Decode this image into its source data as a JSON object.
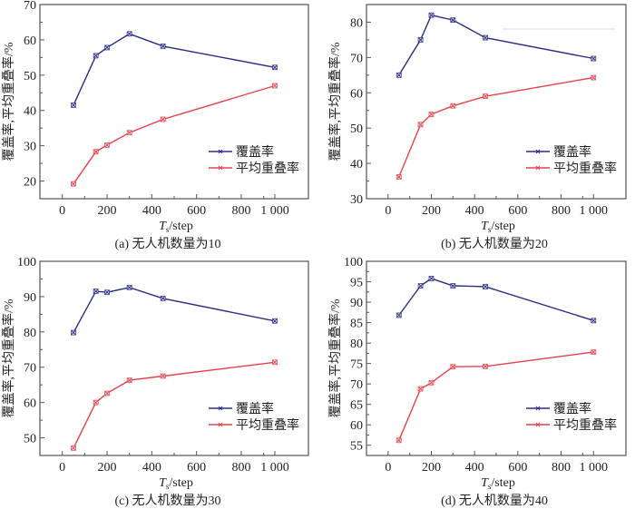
{
  "figure": {
    "legend_labels": [
      "覆盖率",
      "平均重叠率"
    ],
    "series_colors": [
      "#2b2b86",
      "#e8414a"
    ]
  },
  "chart_data": [
    {
      "type": "line",
      "caption": "(a) 无人机数量为10",
      "xlabel_main": "T",
      "xlabel_sub": "s",
      "xlabel_unit": "/step",
      "ylabel": "覆盖率,平均重叠率/%",
      "x": [
        50,
        150,
        200,
        300,
        450,
        1000
      ],
      "x_tick_labels": [
        "0",
        "200",
        "400",
        "600",
        "800",
        "1 000"
      ],
      "x_tick_values": [
        0,
        200,
        400,
        600,
        800,
        1000
      ],
      "x_axis_note": "axis is broken: 1 000 is drawn just after 900",
      "xlim": [
        -100,
        1100
      ],
      "ylim": [
        15,
        70
      ],
      "y_ticks": [
        20,
        30,
        40,
        50,
        60,
        70
      ],
      "series": [
        {
          "name": "覆盖率",
          "values": [
            41.5,
            55.5,
            57.8,
            61.7,
            58.2,
            52.2
          ]
        },
        {
          "name": "平均重叠率",
          "values": [
            19.2,
            28.3,
            30.2,
            33.7,
            37.5,
            47.0
          ]
        }
      ],
      "legend": "bottom-right",
      "grid": false
    },
    {
      "type": "line",
      "caption": "(b) 无人机数量为20",
      "xlabel_main": "T",
      "xlabel_sub": "s",
      "xlabel_unit": "/step",
      "ylabel": "覆盖率,平均重叠率/%",
      "x": [
        50,
        150,
        200,
        300,
        450,
        1000
      ],
      "x_tick_labels": [
        "0",
        "200",
        "400",
        "600",
        "800",
        "1 000"
      ],
      "x_tick_values": [
        0,
        200,
        400,
        600,
        800,
        1000
      ],
      "xlim": [
        -100,
        1100
      ],
      "ylim": [
        30,
        85
      ],
      "y_ticks": [
        30,
        40,
        50,
        60,
        70,
        80
      ],
      "series": [
        {
          "name": "覆盖率",
          "values": [
            65.0,
            75.0,
            82.0,
            80.6,
            75.6,
            69.7
          ]
        },
        {
          "name": "平均重叠率",
          "values": [
            36.2,
            51.0,
            53.9,
            56.3,
            59.0,
            64.3
          ]
        }
      ],
      "legend": "bottom-right",
      "grid": false
    },
    {
      "type": "line",
      "caption": "(c) 无人机数量为30",
      "xlabel_main": "T",
      "xlabel_sub": "s",
      "xlabel_unit": "/step",
      "ylabel": "覆盖率,平均重叠率/%",
      "x": [
        50,
        150,
        200,
        300,
        450,
        1000
      ],
      "x_tick_labels": [
        "0",
        "200",
        "400",
        "600",
        "800",
        "1 000"
      ],
      "x_tick_values": [
        0,
        200,
        400,
        600,
        800,
        1000
      ],
      "xlim": [
        -100,
        1100
      ],
      "ylim": [
        45,
        100
      ],
      "y_ticks": [
        50,
        60,
        70,
        80,
        90,
        100
      ],
      "series": [
        {
          "name": "覆盖率",
          "values": [
            79.8,
            91.5,
            91.2,
            92.6,
            89.5,
            83.1
          ]
        },
        {
          "name": "平均重叠率",
          "values": [
            47.1,
            60.0,
            62.6,
            66.3,
            67.5,
            71.4
          ]
        }
      ],
      "legend": "bottom-right",
      "grid": false
    },
    {
      "type": "line",
      "caption": "(d) 无人机数量为40",
      "xlabel_main": "T",
      "xlabel_sub": "s",
      "xlabel_unit": "/step",
      "ylabel": "覆盖率,平均重叠率/%",
      "x": [
        50,
        150,
        200,
        300,
        450,
        1000
      ],
      "x_tick_labels": [
        "0",
        "200",
        "400",
        "600",
        "800",
        "1 000"
      ],
      "x_tick_values": [
        0,
        200,
        400,
        600,
        800,
        1000
      ],
      "xlim": [
        -100,
        1100
      ],
      "ylim": [
        52.5,
        100
      ],
      "y_ticks": [
        55,
        60,
        65,
        70,
        75,
        80,
        85,
        90,
        95,
        100
      ],
      "series": [
        {
          "name": "覆盖率",
          "values": [
            86.8,
            94.0,
            95.8,
            94.0,
            93.8,
            85.5
          ]
        },
        {
          "name": "平均重叠率",
          "values": [
            56.2,
            68.8,
            70.3,
            74.2,
            74.3,
            77.8
          ]
        }
      ],
      "legend": "bottom-right",
      "grid": false
    }
  ]
}
